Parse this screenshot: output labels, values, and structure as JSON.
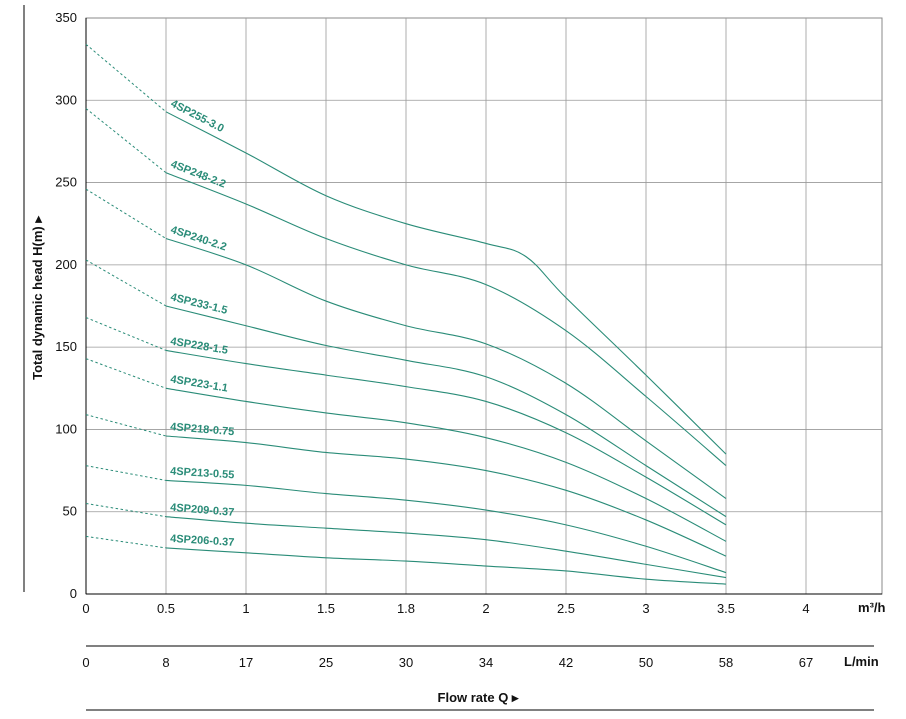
{
  "chart_data": {
    "type": "line",
    "ylabel": "Total dynamic head H(m) ▸",
    "xlabel": "Flow rate Q ▸",
    "x_unit": "m³/h",
    "alt_x_unit": "L/min",
    "x_categories": [
      "0",
      "0.5",
      "1",
      "1.5",
      "1.8",
      "2",
      "2.5",
      "3",
      "3.5",
      "4"
    ],
    "alt_x_ticks": [
      "0",
      "8",
      "17",
      "25",
      "30",
      "34",
      "42",
      "50",
      "58",
      "67"
    ],
    "y_ticks": [
      "0",
      "50",
      "100",
      "150",
      "200",
      "250",
      "300",
      "350"
    ],
    "ylim": [
      0,
      350
    ],
    "grid": true,
    "curve_color": "#2a8c78",
    "note": "Curves are dotted from x=0 to x=1 and solid from x=1 to x=3.5; x positions are category indices of the evenly spaced axis labels",
    "series": [
      {
        "name": "4SP255-3.0",
        "x": [
          0,
          1,
          2,
          3,
          4,
          5,
          5.5,
          6,
          7,
          8
        ],
        "y": [
          334,
          293,
          268,
          242,
          225,
          213,
          205,
          180,
          133,
          85
        ]
      },
      {
        "name": "4SP248-2.2",
        "x": [
          0,
          1,
          2,
          3,
          4,
          5,
          6,
          7,
          8
        ],
        "y": [
          295,
          256,
          237,
          216,
          200,
          188,
          160,
          120,
          78
        ]
      },
      {
        "name": "4SP240-2.2",
        "x": [
          0,
          1,
          2,
          3,
          4,
          5,
          6,
          7,
          8
        ],
        "y": [
          246,
          216,
          200,
          178,
          163,
          152,
          128,
          93,
          58
        ]
      },
      {
        "name": "4SP233-1.5",
        "x": [
          0,
          1,
          2,
          3,
          4,
          5,
          6,
          7,
          8
        ],
        "y": [
          203,
          175,
          163,
          151,
          142,
          132,
          109,
          78,
          47
        ]
      },
      {
        "name": "4SP228-1.5",
        "x": [
          0,
          1,
          2,
          3,
          4,
          5,
          6,
          7,
          8
        ],
        "y": [
          168,
          148,
          140,
          133,
          126,
          117,
          98,
          71,
          42
        ]
      },
      {
        "name": "4SP223-1.1",
        "x": [
          0,
          1,
          2,
          3,
          4,
          5,
          6,
          7,
          8
        ],
        "y": [
          143,
          125,
          117,
          110,
          104,
          95,
          80,
          58,
          32
        ]
      },
      {
        "name": "4SP218-0.75",
        "x": [
          0,
          1,
          2,
          3,
          4,
          5,
          6,
          7,
          8
        ],
        "y": [
          109,
          96,
          92,
          86,
          82,
          75,
          63,
          45,
          23
        ]
      },
      {
        "name": "4SP213-0.55",
        "x": [
          0,
          1,
          2,
          3,
          4,
          5,
          6,
          7,
          8
        ],
        "y": [
          78,
          69,
          66,
          61,
          57,
          51,
          42,
          29,
          13
        ]
      },
      {
        "name": "4SP209-0.37",
        "x": [
          0,
          1,
          2,
          3,
          4,
          5,
          6,
          7,
          8
        ],
        "y": [
          55,
          47,
          43,
          40,
          37,
          33,
          26,
          18,
          10
        ]
      },
      {
        "name": "4SP206-0.37",
        "x": [
          0,
          1,
          2,
          3,
          4,
          5,
          6,
          7,
          8
        ],
        "y": [
          35,
          28,
          25,
          22,
          20,
          17,
          14,
          9,
          6
        ]
      }
    ]
  }
}
